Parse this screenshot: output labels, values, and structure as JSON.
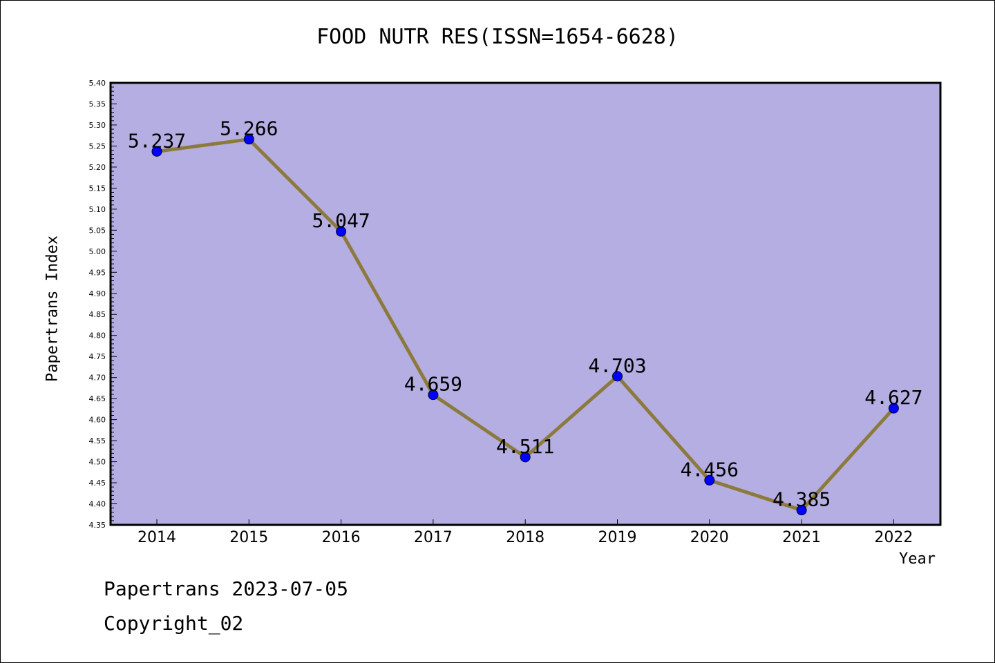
{
  "chart_data": {
    "type": "line",
    "title": "FOOD NUTR RES(ISSN=1654-6628)",
    "xlabel": "Year",
    "ylabel": "Papertrans Index",
    "categories": [
      "2014",
      "2015",
      "2016",
      "2017",
      "2018",
      "2019",
      "2020",
      "2021",
      "2022"
    ],
    "series": [
      {
        "values": [
          5.237,
          5.266,
          5.047,
          4.659,
          4.511,
          4.703,
          4.456,
          4.385,
          4.627
        ]
      }
    ],
    "data_labels": [
      "5.237",
      "5.266",
      "5.047",
      "4.659",
      "4.511",
      "4.703",
      "4.456",
      "4.385",
      "4.627"
    ],
    "ylim": [
      4.35,
      5.4
    ],
    "yticks": [
      "4.35",
      "4.40",
      "4.45",
      "4.50",
      "4.55",
      "4.60",
      "4.65",
      "4.70",
      "4.75",
      "4.80",
      "4.85",
      "4.90",
      "4.95",
      "5.00",
      "5.05",
      "5.10",
      "5.15",
      "5.20",
      "5.25",
      "5.30",
      "5.35",
      "5.40"
    ],
    "grid": false,
    "colors": {
      "plot_background": "#b4aee2",
      "line": "#8c7a3c",
      "marker": "#0000ff"
    }
  },
  "footer": {
    "line1": "Papertrans 2023-07-05",
    "line2": "Copyright_02"
  }
}
